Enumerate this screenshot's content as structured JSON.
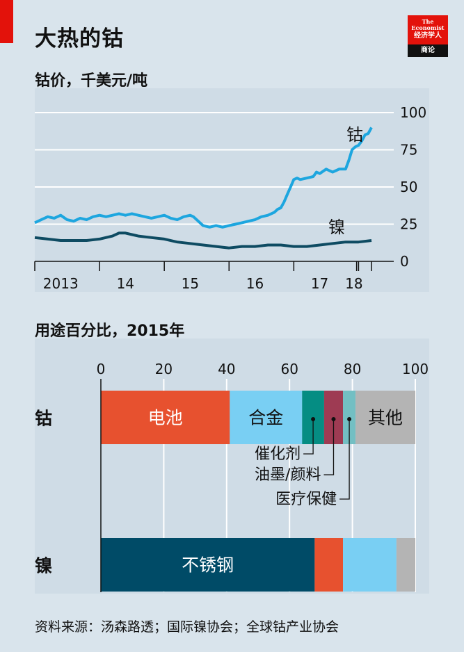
{
  "header": {
    "title": "大热的钴",
    "logo_line1": "The",
    "logo_line2": "Economist",
    "logo_line3": "经济学人",
    "logo_line4": "商论"
  },
  "footer": {
    "source": "资料来源：汤森路透；国际镍协会；全球钴产业协会"
  },
  "colors": {
    "background": "#d9e4ec",
    "cobalt_line": "#1da6df",
    "nickel_line": "#0e4b62",
    "battery": "#e7512f",
    "alloy": "#79cff3",
    "catalyst": "#058d83",
    "ink": "#9e3b53",
    "health": "#73bfc3",
    "stainless": "#004b67",
    "other": "#b4b4b4",
    "brand_red": "#e3120b"
  },
  "chart_data": [
    {
      "type": "line",
      "title": "钴价，千美元/吨",
      "ylim": [
        0,
        100
      ],
      "yticks": [
        "0",
        "25",
        "50",
        "75",
        "100"
      ],
      "ytick_values": [
        0,
        25,
        50,
        75,
        100
      ],
      "xlim": [
        2013.0,
        2018.35
      ],
      "xtick_labels": [
        "2013",
        "14",
        "15",
        "16",
        "17",
        "18"
      ],
      "xtick_label_pos": [
        2013.4,
        2014.4,
        2015.4,
        2016.4,
        2017.4,
        2017.93
      ],
      "xtick_marks": [
        2013.0,
        2014.0,
        2015.0,
        2016.0,
        2017.0,
        2017.97,
        2018.0,
        2018.2
      ],
      "grid": true,
      "series": [
        {
          "name": "钴",
          "x": [
            2013.0,
            2013.1,
            2013.2,
            2013.3,
            2013.4,
            2013.5,
            2013.6,
            2013.7,
            2013.8,
            2013.9,
            2014.0,
            2014.1,
            2014.2,
            2014.3,
            2014.4,
            2014.5,
            2014.6,
            2014.7,
            2014.8,
            2014.9,
            2015.0,
            2015.1,
            2015.2,
            2015.3,
            2015.4,
            2015.45,
            2015.5,
            2015.6,
            2015.7,
            2015.8,
            2015.9,
            2016.0,
            2016.1,
            2016.2,
            2016.3,
            2016.4,
            2016.5,
            2016.6,
            2016.7,
            2016.75,
            2016.8,
            2016.85,
            2016.9,
            2016.95,
            2017.0,
            2017.05,
            2017.1,
            2017.2,
            2017.3,
            2017.35,
            2017.4,
            2017.5,
            2017.55,
            2017.6,
            2017.65,
            2017.7,
            2017.8,
            2017.85,
            2017.9,
            2017.95,
            2018.0,
            2018.05,
            2018.1,
            2018.15,
            2018.2
          ],
          "values": [
            26,
            28,
            30,
            29,
            31,
            28,
            27,
            29,
            28,
            30,
            31,
            30,
            31,
            32,
            31,
            32,
            31,
            30,
            29,
            30,
            31,
            29,
            28,
            30,
            31,
            30,
            28,
            24,
            23,
            24,
            23,
            24,
            25,
            26,
            27,
            28,
            30,
            31,
            33,
            35,
            36,
            40,
            45,
            50,
            55,
            56,
            55,
            56,
            57,
            60,
            59,
            62,
            61,
            60,
            61,
            62,
            62,
            68,
            75,
            77,
            78,
            81,
            85,
            86,
            90
          ]
        },
        {
          "name": "镍",
          "x": [
            2013.0,
            2013.2,
            2013.4,
            2013.6,
            2013.8,
            2014.0,
            2014.2,
            2014.3,
            2014.4,
            2014.5,
            2014.6,
            2014.8,
            2015.0,
            2015.2,
            2015.4,
            2015.6,
            2015.8,
            2016.0,
            2016.2,
            2016.4,
            2016.6,
            2016.8,
            2017.0,
            2017.2,
            2017.4,
            2017.6,
            2017.8,
            2018.0,
            2018.2
          ],
          "values": [
            16,
            15,
            14,
            14,
            14,
            15,
            17,
            19,
            19,
            18,
            17,
            16,
            15,
            13,
            12,
            11,
            10,
            9,
            10,
            10,
            11,
            11,
            10,
            10,
            11,
            12,
            13,
            13,
            14
          ]
        }
      ]
    },
    {
      "type": "bar",
      "orientation": "horizontal",
      "stacked": true,
      "title": "用途百分比，2015年",
      "xlim": [
        0,
        100
      ],
      "xticks": [
        "0",
        "20",
        "40",
        "60",
        "80",
        "100"
      ],
      "xtick_values": [
        0,
        20,
        40,
        60,
        80,
        100
      ],
      "categories": [
        "钴",
        "镍"
      ],
      "series": [
        {
          "name": "电池",
          "values": [
            41,
            9
          ],
          "color_key": "battery",
          "label": "电池"
        },
        {
          "name": "合金",
          "values": [
            23,
            17
          ],
          "color_key": "alloy",
          "label": "合金"
        },
        {
          "name": "催化剂",
          "values": [
            7,
            0
          ],
          "color_key": "catalyst",
          "label": ""
        },
        {
          "name": "油墨/颜料",
          "values": [
            6,
            0
          ],
          "color_key": "ink",
          "label": ""
        },
        {
          "name": "医疗保健",
          "values": [
            4,
            0
          ],
          "color_key": "health",
          "label": ""
        },
        {
          "name": "其他",
          "values": [
            19,
            6
          ],
          "color_key": "other",
          "label": "其他"
        },
        {
          "name": "不锈钢",
          "values": [
            0,
            68
          ],
          "color_key": "stainless",
          "label": "不锈钢"
        }
      ],
      "segment_order": [
        [
          "电池",
          "合金",
          "催化剂",
          "油墨/颜料",
          "医疗保健",
          "其他"
        ],
        [
          "不锈钢",
          "电池",
          "合金",
          "其他"
        ]
      ],
      "callouts": [
        "催化剂",
        "油墨/颜料",
        "医疗保健"
      ]
    }
  ]
}
